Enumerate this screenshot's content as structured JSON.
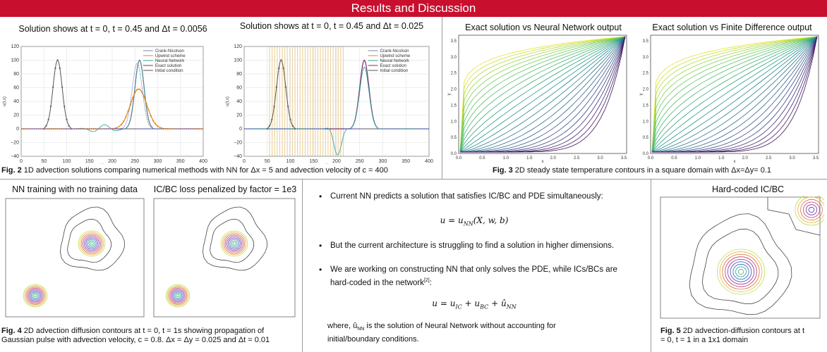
{
  "banner": {
    "title": "Results and Discussion"
  },
  "fig2": {
    "left_title": "Solution shows at t = 0, t = 0.45 and Δt = 0.0056",
    "right_title": "Solution shows at t = 0, t = 0.45 and Δt = 0.025",
    "legend": [
      "Crank-Nicolson",
      "Upwind scheme",
      "Neural Network",
      "Exact solution",
      "Initial condition"
    ],
    "ylabel": "u(t,x)",
    "xlabel": "x",
    "caption_label": "Fig. 2",
    "caption_text": " 1D advection solutions comparing numerical methods with NN for Δx = 5 and advection velocity of c = 400"
  },
  "fig3": {
    "left_title": "Exact solution vs Neural Network output",
    "right_title": "Exact solution vs Finite Difference output",
    "caption_label": "Fig. 3",
    "caption_text": " 2D steady state temperature contours in a square domain with Δx=Δy= 0.1",
    "ylabel": "y",
    "xlabel": "x"
  },
  "fig4": {
    "left_title": "NN training with no training data",
    "right_title": "IC/BC loss penalized by factor = 1e3",
    "caption_label": "Fig. 4",
    "caption_line1": " 2D advection diffusion contours at t = 0, t = 1s showing propagation of",
    "caption_line2": "Gaussian pulse with advection velocity, c = 0.8. Δx = Δy = 0.025 and Δt = 0.01"
  },
  "text": {
    "b1": "Current NN predicts a solution that satisfies IC/BC and PDE simultaneously:",
    "eq1": "u = u",
    "eq1_sub": "NN",
    "eq1_rest": "(X, w, b)",
    "b2": "But the current architecture is struggling to find a solution in higher dimensions.",
    "b3_line1": "We are working on constructing NN that only solves the PDE, while ICs/BCs are",
    "b3_line2": "hard-coded in the network",
    "b3_ref": "[2]",
    "b3_end": ":",
    "eq2": "u = u",
    "eq2_sub1": "IC",
    "eq2_mid1": " + u",
    "eq2_sub2": "BC",
    "eq2_mid2": " + û",
    "eq2_sub3": "NN",
    "where_line1": "where, û",
    "where_sub": "NN",
    "where_rest": "  is the solution of Neural Network without accounting for",
    "where_line2": "initial/boundary conditions."
  },
  "fig5": {
    "title": "Hard-coded IC/BC",
    "caption_label": "Fig. 5",
    "caption_line1": " 2D advection-diffusion contours at t",
    "caption_line2": "= 0, t = 1 in a 1x1 domain"
  },
  "axes": {
    "fig2_y": [
      "120",
      "100",
      "80",
      "60",
      "40",
      "20",
      "0",
      "−20",
      "−40"
    ],
    "fig2_x": [
      "0",
      "50",
      "100",
      "150",
      "200",
      "250",
      "300",
      "350",
      "400"
    ],
    "fig3_y": [
      "3.5",
      "3.0",
      "2.5",
      "2.0",
      "1.5",
      "1.0",
      "0.5",
      "0.0"
    ],
    "fig3_x": [
      "0.0",
      "0.5",
      "1.0",
      "1.5",
      "2.0",
      "2.5",
      "3.0",
      "3.5"
    ]
  }
}
